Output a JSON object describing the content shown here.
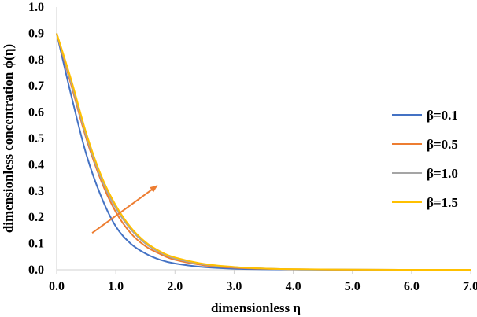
{
  "chart_data": {
    "type": "line",
    "title": "",
    "xlabel": "dimensionless η",
    "ylabel": "dimensionless concentration ϕ(η)",
    "xlim": [
      0,
      7
    ],
    "ylim": [
      0,
      1
    ],
    "x_ticks": [
      "0.0",
      "1.0",
      "2.0",
      "3.0",
      "4.0",
      "5.0",
      "6.0",
      "7.0"
    ],
    "y_ticks": [
      "0.0",
      "0.1",
      "0.2",
      "0.3",
      "0.4",
      "0.5",
      "0.6",
      "0.7",
      "0.8",
      "0.9",
      "1.0"
    ],
    "grid": false,
    "legend_position": "right",
    "x": [
      0,
      0.25,
      0.5,
      0.75,
      1.0,
      1.25,
      1.5,
      1.75,
      2.0,
      2.5,
      3.0,
      3.5,
      4.0,
      5.0,
      6.0,
      7.0
    ],
    "series": [
      {
        "name": "β=0.1",
        "color": "#4472C4",
        "values": [
          0.9,
          0.66,
          0.44,
          0.28,
          0.165,
          0.1,
          0.062,
          0.038,
          0.024,
          0.01,
          0.004,
          0.002,
          0.001,
          0.0,
          0.0,
          0.0
        ]
      },
      {
        "name": "β=0.5",
        "color": "#ED7D31",
        "values": [
          0.9,
          0.7,
          0.5,
          0.34,
          0.22,
          0.14,
          0.09,
          0.06,
          0.038,
          0.017,
          0.008,
          0.004,
          0.002,
          0.0005,
          0.0,
          0.0
        ]
      },
      {
        "name": "β=1.0",
        "color": "#A5A5A5",
        "values": [
          0.9,
          0.71,
          0.51,
          0.35,
          0.235,
          0.155,
          0.1,
          0.066,
          0.043,
          0.02,
          0.01,
          0.005,
          0.002,
          0.0006,
          0.0,
          0.0
        ]
      },
      {
        "name": "β=1.5",
        "color": "#FFC000",
        "values": [
          0.9,
          0.72,
          0.52,
          0.36,
          0.245,
          0.162,
          0.106,
          0.07,
          0.047,
          0.022,
          0.011,
          0.005,
          0.0025,
          0.0007,
          0.0,
          0.0
        ]
      }
    ],
    "annotation": {
      "type": "arrow",
      "color": "#ED7D31",
      "from": [
        0.6,
        0.14
      ],
      "to": [
        1.7,
        0.32
      ]
    }
  }
}
